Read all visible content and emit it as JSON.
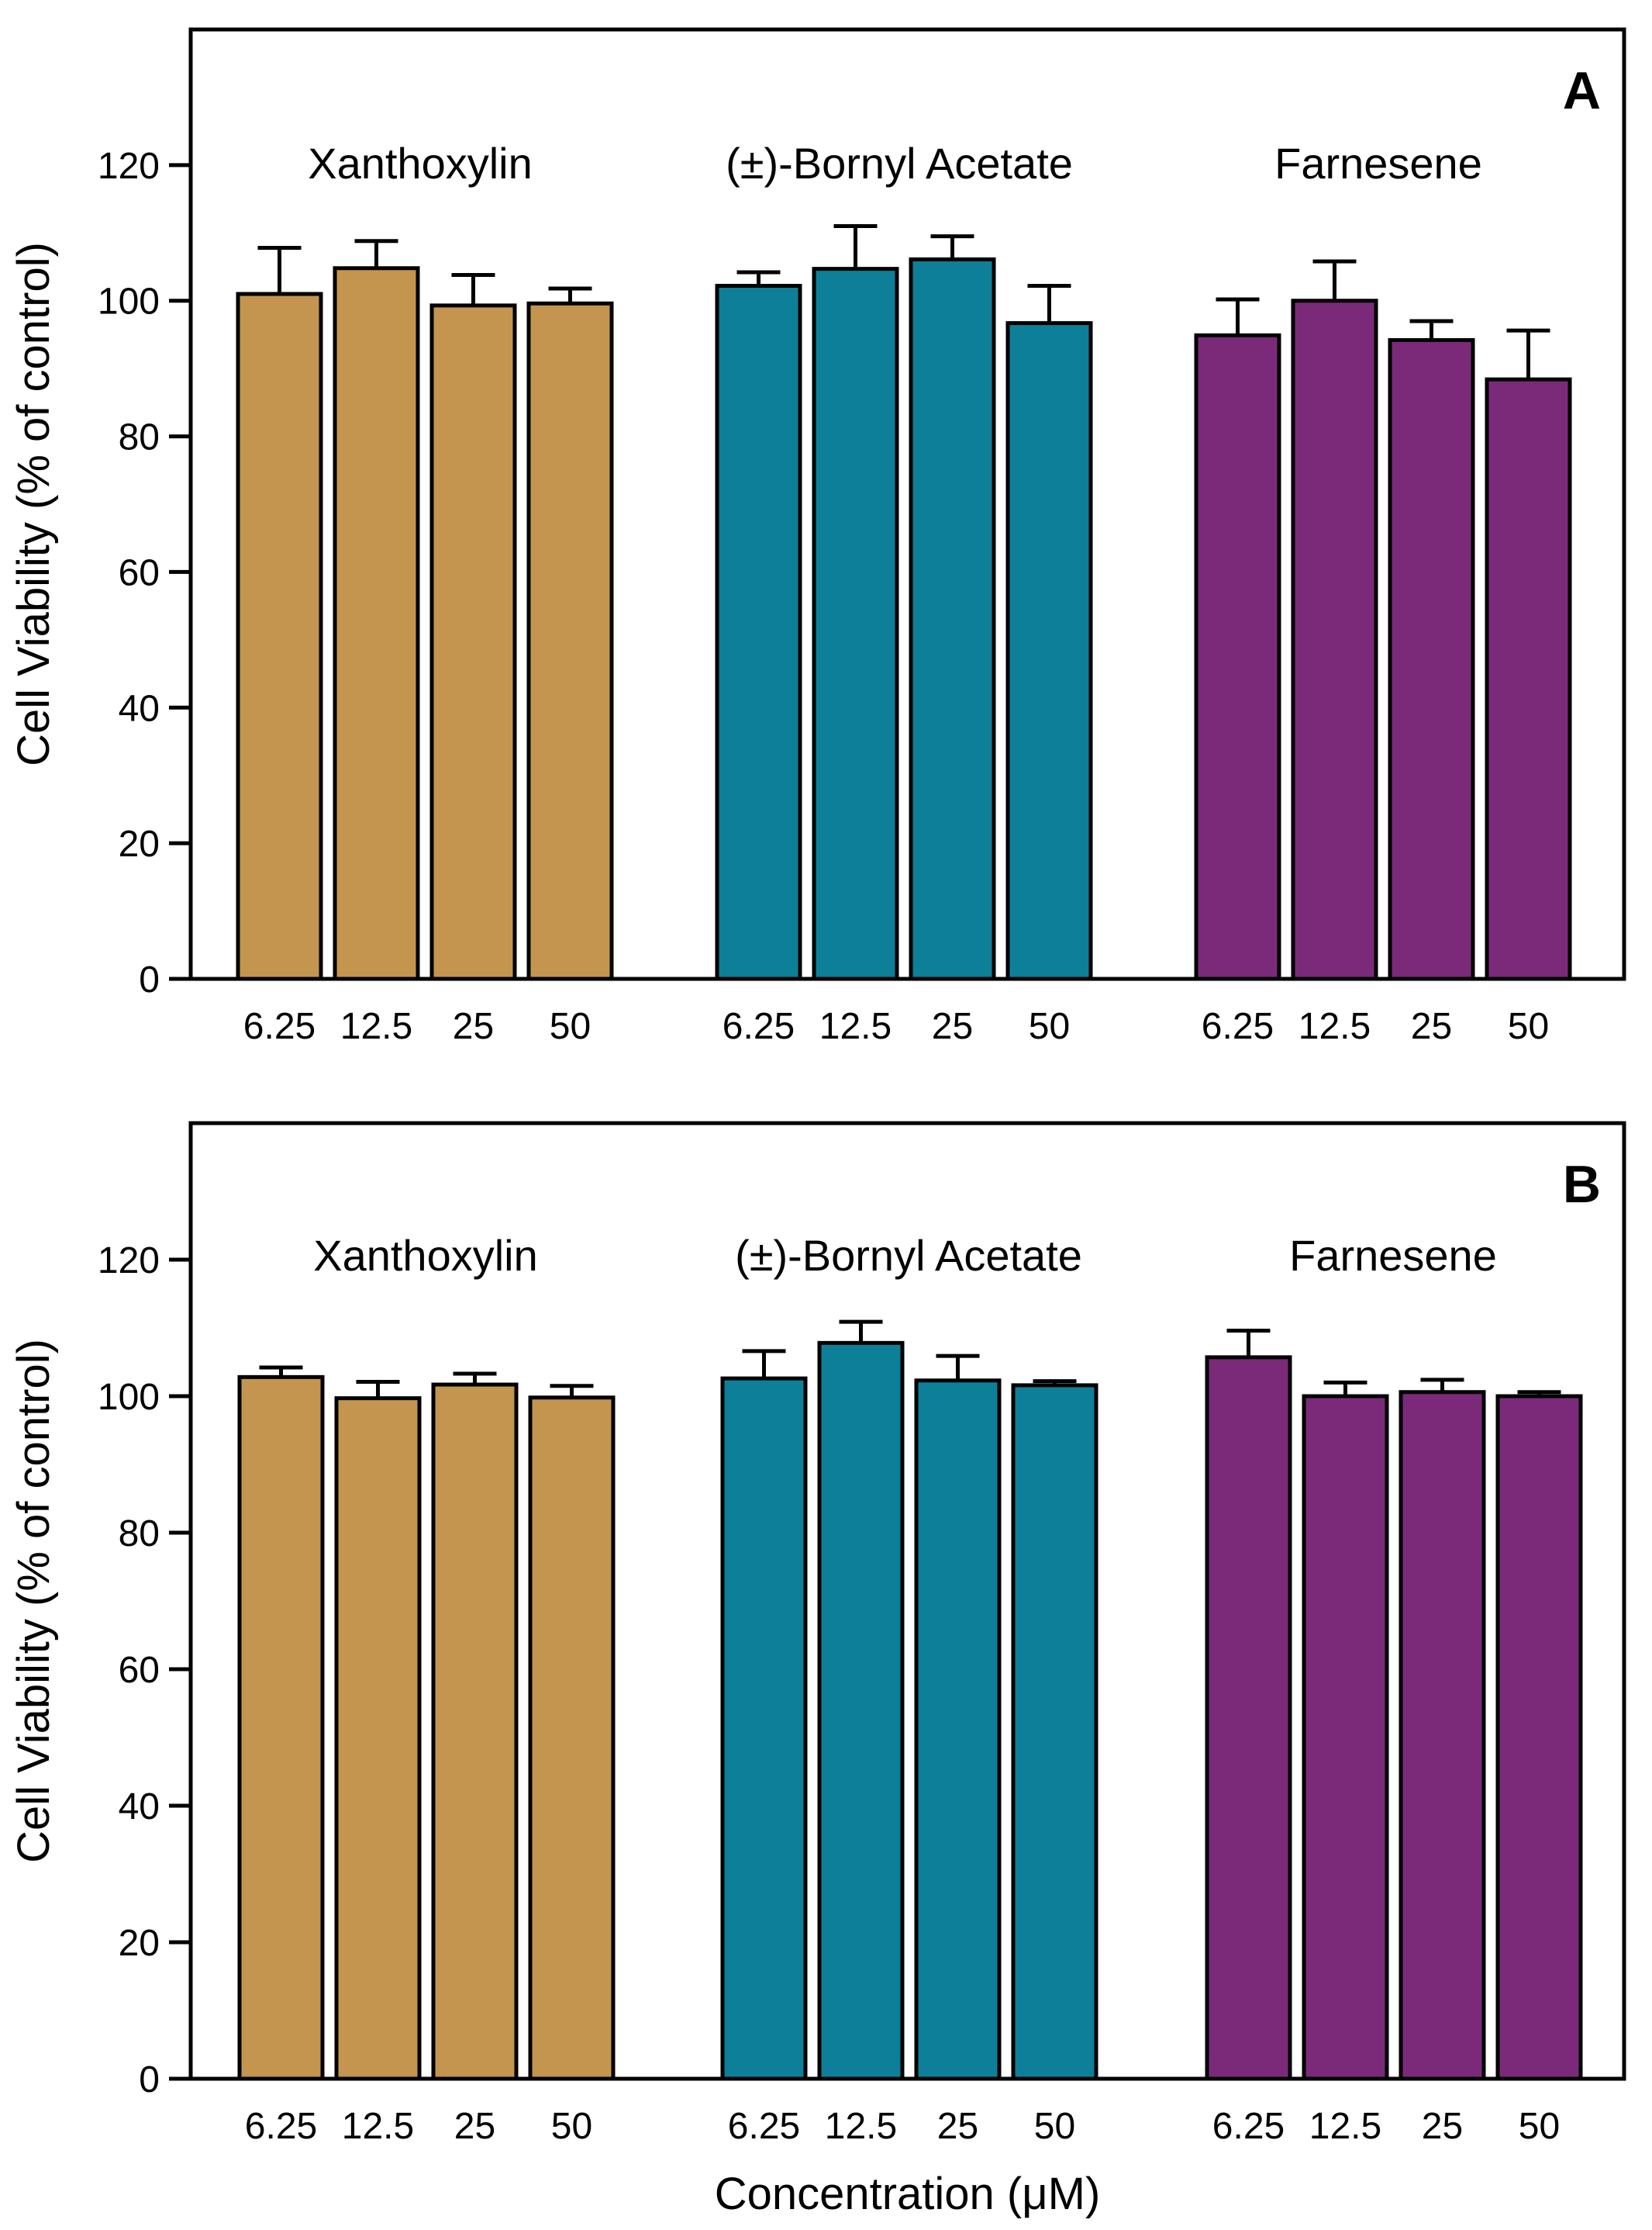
{
  "chart_data": [
    {
      "type": "bar",
      "panel": "A",
      "ylabel": "Cell Viability (% of control)",
      "xlabel": "",
      "ylim": [
        0,
        140
      ],
      "yticks": [
        0,
        20,
        40,
        60,
        80,
        100,
        120
      ],
      "groups": [
        {
          "name": "Xanthoxylin",
          "color": "#c4954e",
          "categories": [
            "6.25",
            "12.5",
            "25",
            "50"
          ],
          "values": [
            101,
            104.8,
            99.3,
            99.6
          ],
          "errors": [
            6.8,
            4.0,
            4.5,
            2.2
          ]
        },
        {
          "name": "(±)-Bornyl Acetate",
          "color": "#0e7f98",
          "categories": [
            "6.25",
            "12.5",
            "25",
            "50"
          ],
          "values": [
            102.2,
            104.7,
            106.1,
            96.7
          ],
          "errors": [
            2.0,
            6.3,
            3.4,
            5.5
          ]
        },
        {
          "name": "Farnesene",
          "color": "#7b2a7a",
          "categories": [
            "6.25",
            "12.5",
            "25",
            "50"
          ],
          "values": [
            94.9,
            100,
            94.2,
            88.4
          ],
          "errors": [
            5.3,
            5.8,
            2.8,
            7.2
          ]
        }
      ]
    },
    {
      "type": "bar",
      "panel": "B",
      "ylabel": "Cell Viability (% of control)",
      "xlabel": "Concentration (μM)",
      "ylim": [
        0,
        140
      ],
      "yticks": [
        0,
        20,
        40,
        60,
        80,
        100,
        120
      ],
      "groups": [
        {
          "name": "Xanthoxylin",
          "color": "#c4954e",
          "categories": [
            "6.25",
            "12.5",
            "25",
            "50"
          ],
          "values": [
            102.8,
            99.7,
            101.7,
            99.8
          ],
          "errors": [
            1.4,
            2.4,
            1.6,
            1.7
          ]
        },
        {
          "name": "(±)-Bornyl Acetate",
          "color": "#0e7f98",
          "categories": [
            "6.25",
            "12.5",
            "25",
            "50"
          ],
          "values": [
            102.6,
            107.8,
            102.3,
            101.6
          ],
          "errors": [
            4.0,
            3.1,
            3.6,
            0.6
          ]
        },
        {
          "name": "Farnesene",
          "color": "#7b2a7a",
          "categories": [
            "6.25",
            "12.5",
            "25",
            "50"
          ],
          "values": [
            105.7,
            100,
            100.6,
            100
          ],
          "errors": [
            3.9,
            2.0,
            1.8,
            0.6
          ]
        }
      ]
    }
  ]
}
